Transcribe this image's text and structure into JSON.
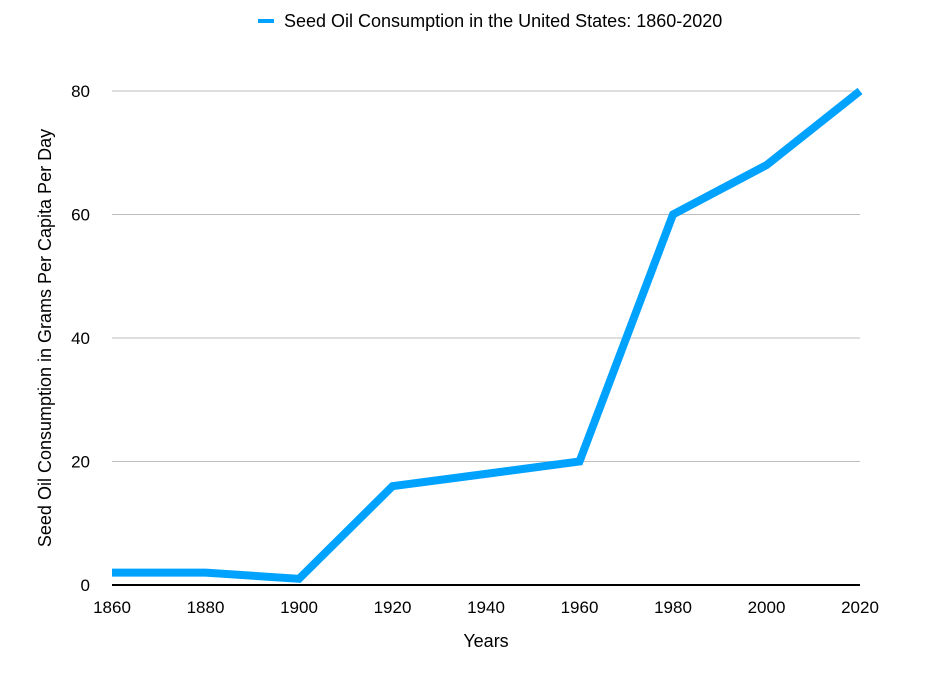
{
  "chart_data": {
    "type": "line",
    "title": "",
    "xlabel": "Years",
    "ylabel": "Seed Oil Consumption in Grams Per Capita Per Day",
    "x": [
      1860,
      1880,
      1900,
      1920,
      1940,
      1960,
      1980,
      2000,
      2020
    ],
    "series": [
      {
        "name": "Seed Oil Consumption in the United States: 1860-2020",
        "color": "#00A2FF",
        "values": [
          2,
          2,
          1,
          16,
          18,
          20,
          60,
          68,
          80
        ]
      }
    ],
    "xticks": [
      "1860",
      "1880",
      "1900",
      "1920",
      "1940",
      "1960",
      "1980",
      "2000",
      "2020"
    ],
    "yticks": [
      "0",
      "20",
      "40",
      "60",
      "80"
    ],
    "xlim": [
      1860,
      2020
    ],
    "ylim": [
      0,
      80
    ],
    "grid": "horizontal",
    "legend": "top-center"
  }
}
